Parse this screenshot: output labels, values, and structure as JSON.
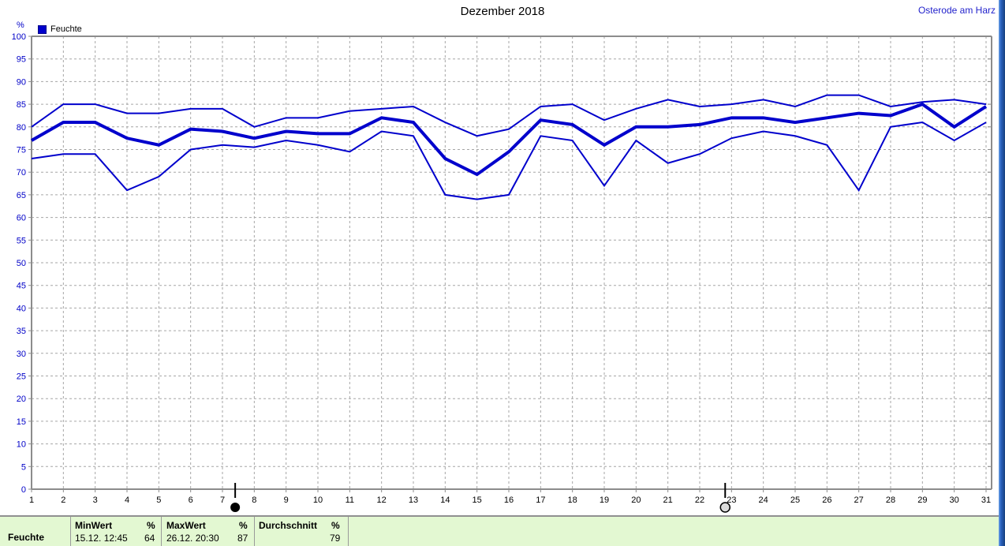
{
  "header": {
    "title": "Dezember 2018",
    "station": "Osterode am Harz"
  },
  "legend": {
    "label": "Feuchte"
  },
  "axis": {
    "unit_label": "%",
    "y_min": 0,
    "y_max": 100,
    "y_step": 5,
    "x_first_day": 1,
    "x_last_day": 31
  },
  "chart_data": {
    "type": "line",
    "title": "Dezember 2018",
    "xlabel": "",
    "ylabel": "%",
    "ylim": [
      0,
      100
    ],
    "grid": true,
    "legend_position": "top-left",
    "x": [
      1,
      2,
      3,
      4,
      5,
      6,
      7,
      8,
      9,
      10,
      11,
      12,
      13,
      14,
      15,
      16,
      17,
      18,
      19,
      20,
      21,
      22,
      23,
      24,
      25,
      26,
      27,
      28,
      29,
      30,
      31
    ],
    "series": [
      {
        "name": "max",
        "width": 2,
        "values": [
          80,
          85,
          85,
          83,
          83,
          84,
          84,
          80,
          82,
          82,
          83.5,
          84,
          84.5,
          81,
          78,
          79.5,
          84.5,
          85,
          81.5,
          84,
          86,
          84.5,
          85,
          86,
          84.5,
          87,
          87,
          84.5,
          85.5,
          86,
          85
        ]
      },
      {
        "name": "avg",
        "width": 4,
        "values": [
          77,
          81,
          81,
          77.5,
          76,
          79.5,
          79,
          77.5,
          79,
          78.5,
          78.5,
          82,
          81,
          73,
          69.5,
          74.5,
          81.5,
          80.5,
          76,
          80,
          80,
          80.5,
          82,
          82,
          81,
          82,
          83,
          82.5,
          85,
          80,
          84.5
        ]
      },
      {
        "name": "min",
        "width": 2,
        "values": [
          73,
          74,
          74,
          66,
          69,
          75,
          76,
          75.5,
          77,
          76,
          74.5,
          79,
          78,
          65,
          64,
          65,
          78,
          77,
          67,
          77,
          72,
          74,
          77.5,
          79,
          78,
          76,
          66,
          80,
          81,
          77,
          81
        ]
      }
    ],
    "annotations": [
      {
        "day": 7.4,
        "symbol": "new-moon"
      },
      {
        "day": 22.8,
        "symbol": "full-moon"
      }
    ]
  },
  "summary_table": {
    "row_label": "Feuchte",
    "columns": [
      {
        "header": "MinWert",
        "unit": "%",
        "datetime": "15.12.  12:45",
        "value": "64"
      },
      {
        "header": "MaxWert",
        "unit": "%",
        "datetime": "26.12.  20:30",
        "value": "87"
      },
      {
        "header": "Durchschnitt",
        "unit": "%",
        "datetime": "",
        "value": "79"
      }
    ]
  },
  "colors": {
    "line": "#0000cc",
    "axis_text_y": "#0000c8",
    "axis_text_x": "#000000",
    "grid": "#a6a6a6",
    "border": "#8c8c8c",
    "table_bg": "#e3f8d2",
    "station_text": "#2222cc"
  }
}
